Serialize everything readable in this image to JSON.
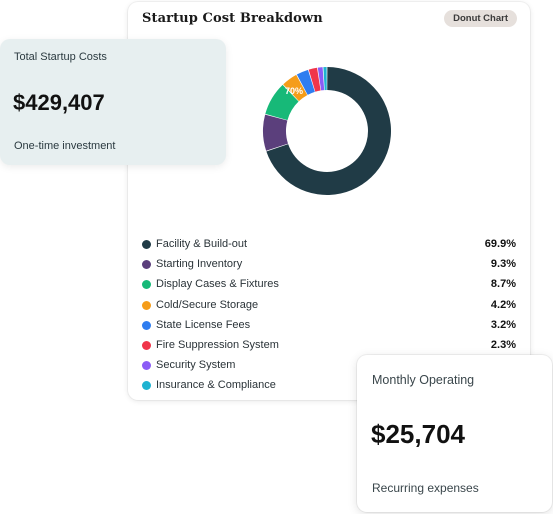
{
  "chart_card": {
    "title": "Startup Cost Breakdown",
    "badge": "Donut Chart"
  },
  "chart_data": {
    "type": "pie",
    "donut": true,
    "title": "Startup Cost Breakdown",
    "categories": [
      "Facility & Build-out",
      "Starting Inventory",
      "Display Cases & Fixtures",
      "Cold/Secure Storage",
      "State License Fees",
      "Fire Suppression System",
      "Security System",
      "Insurance & Compliance"
    ],
    "values": [
      69.9,
      9.3,
      8.7,
      4.2,
      3.2,
      2.3,
      1.4,
      1.0
    ],
    "value_labels": [
      "69.9%",
      "9.3%",
      "8.7%",
      "4.2%",
      "3.2%",
      "2.3%",
      "",
      ""
    ],
    "slice_label": "70%",
    "colors": [
      "#203b46",
      "#5b3f7c",
      "#17b978",
      "#f59d1a",
      "#2f7df0",
      "#f0354a",
      "#8b5cf6",
      "#1fb3d1"
    ],
    "legend_position": "bottom"
  },
  "total_card": {
    "label": "Total Startup Costs",
    "amount": "$429,407",
    "sub": "One-time investment"
  },
  "monthly_card": {
    "label": "Monthly Operating",
    "amount": "$25,704",
    "sub": "Recurring expenses"
  }
}
